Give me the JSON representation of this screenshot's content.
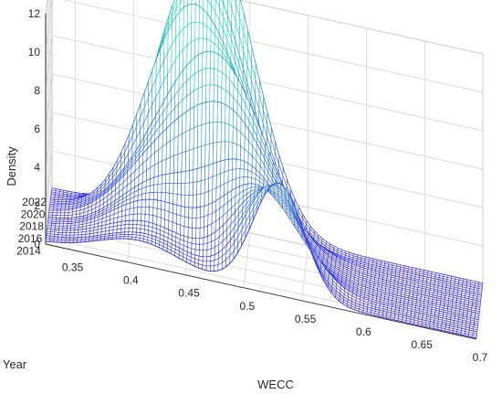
{
  "chart_data": {
    "type": "surface",
    "title": "",
    "xlabel": "WECC",
    "ylabel": "Year",
    "zlabel": "Density",
    "x_ticks": [
      "0.35",
      "0.4",
      "0.45",
      "0.5",
      "0.55",
      "0.6",
      "0.65",
      "0.7"
    ],
    "y_ticks": [
      "2014",
      "2016",
      "2018",
      "2020",
      "2022"
    ],
    "z_ticks": [
      "0",
      "2",
      "4",
      "6",
      "8",
      "10",
      "12"
    ],
    "xlim": [
      0.33,
      0.7
    ],
    "ylim": [
      2013,
      2022
    ],
    "zlim": [
      0,
      12
    ],
    "colormap": [
      "#3a2bd8",
      "#1fd0b0"
    ],
    "grid": true,
    "series": [
      {
        "year": 2013,
        "peaks": [
          {
            "center": 0.41,
            "height": 1.2,
            "width": 0.035
          },
          {
            "center": 0.53,
            "height": 5.8,
            "width": 0.022
          }
        ]
      },
      {
        "year": 2014,
        "peaks": [
          {
            "center": 0.415,
            "height": 1.3,
            "width": 0.035
          },
          {
            "center": 0.525,
            "height": 5.3,
            "width": 0.025
          }
        ]
      },
      {
        "year": 2015,
        "peaks": [
          {
            "center": 0.415,
            "height": 1.6,
            "width": 0.035
          },
          {
            "center": 0.52,
            "height": 4.7,
            "width": 0.03
          }
        ]
      },
      {
        "year": 2016,
        "peaks": [
          {
            "center": 0.42,
            "height": 2.4,
            "width": 0.035
          },
          {
            "center": 0.51,
            "height": 4.4,
            "width": 0.033
          }
        ]
      },
      {
        "year": 2017,
        "peaks": [
          {
            "center": 0.425,
            "height": 3.0,
            "width": 0.035
          },
          {
            "center": 0.5,
            "height": 4.9,
            "width": 0.035
          }
        ]
      },
      {
        "year": 2018,
        "peaks": [
          {
            "center": 0.43,
            "height": 4.0,
            "width": 0.038
          },
          {
            "center": 0.49,
            "height": 6.2,
            "width": 0.037
          }
        ]
      },
      {
        "year": 2019,
        "peaks": [
          {
            "center": 0.44,
            "height": 4.8,
            "width": 0.04
          },
          {
            "center": 0.485,
            "height": 6.8,
            "width": 0.038
          }
        ]
      },
      {
        "year": 2020,
        "peaks": [
          {
            "center": 0.44,
            "height": 7.6,
            "width": 0.035
          },
          {
            "center": 0.48,
            "height": 6.0,
            "width": 0.04
          }
        ]
      },
      {
        "year": 2021,
        "peaks": [
          {
            "center": 0.445,
            "height": 9.0,
            "width": 0.033
          },
          {
            "center": 0.48,
            "height": 6.4,
            "width": 0.035
          }
        ]
      },
      {
        "year": 2022,
        "peaks": [
          {
            "center": 0.45,
            "height": 9.6,
            "width": 0.03
          },
          {
            "center": 0.485,
            "height": 8.5,
            "width": 0.032
          }
        ]
      }
    ]
  }
}
